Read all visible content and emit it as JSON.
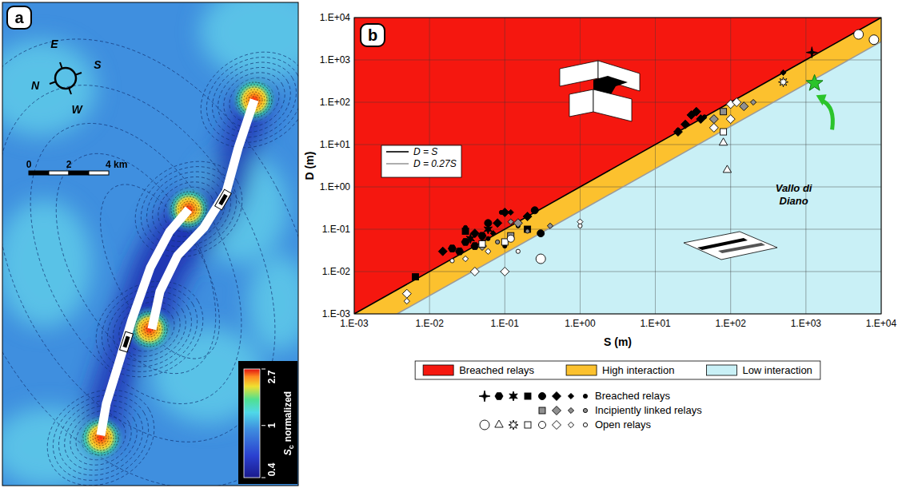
{
  "panel_a": {
    "label": "a",
    "compass": [
      "E",
      "S",
      "N",
      "W"
    ],
    "scale_bar": {
      "ticks": [
        0,
        2,
        {
          "value": 4,
          "label": "4 km"
        }
      ]
    },
    "colorbar": {
      "title": "S",
      "title_subscript": "c",
      "title_suffix": "normalized",
      "range": [
        0.4,
        2.7
      ],
      "ticks": [
        0.4,
        1,
        2.7
      ],
      "log": true
    }
  },
  "chart_data": {
    "type": "scatter",
    "panel_label": "b",
    "x_label": "S (m)",
    "y_label": "D (m)",
    "log": true,
    "grid": true,
    "legend": "bottom",
    "xlim": [
      0.001,
      10000
    ],
    "ylim": [
      0.001,
      10000
    ],
    "xticks": [
      {
        "value": 0.001,
        "label": "1.E-03"
      },
      {
        "value": 0.01,
        "label": "1.E-02"
      },
      {
        "value": 0.1,
        "label": "1.E-01"
      },
      {
        "value": 1,
        "label": "1.E+00"
      },
      {
        "value": 10,
        "label": "1.E+01"
      },
      {
        "value": 100,
        "label": "1.E+02"
      },
      {
        "value": 1000,
        "label": "1.E+03"
      },
      {
        "value": 10000,
        "label": "1.E+04"
      }
    ],
    "yticks": [
      {
        "value": 0.001,
        "label": "1.E-03"
      },
      {
        "value": 0.01,
        "label": "1.E-02"
      },
      {
        "value": 0.1,
        "label": "1.E-01"
      },
      {
        "value": 1,
        "label": "1.E+00"
      },
      {
        "value": 10,
        "label": "1.E+01"
      },
      {
        "value": 100,
        "label": "1.E+02"
      },
      {
        "value": 1000,
        "label": "1.E+03"
      },
      {
        "value": 10000,
        "label": "1.E+04"
      }
    ],
    "regions": [
      {
        "name": "Breached relays",
        "color": "#f5170f",
        "lower_ratio": 1
      },
      {
        "name": "High interaction",
        "color": "#fcc12e",
        "lower_ratio": 0.27,
        "upper_ratio": 1
      },
      {
        "name": "Low interaction",
        "color": "#c9f0f6",
        "upper_ratio": 0.27
      }
    ],
    "reference_lines": [
      {
        "name": "D = S",
        "ratio": 1,
        "color": "#000000"
      },
      {
        "name": "D = 0.27S",
        "ratio": 0.27,
        "color": "#9a9a9a"
      }
    ],
    "series": [
      {
        "name": "Breached relays",
        "marker": "cross",
        "color": "#000000",
        "x": [
          1200
        ],
        "values": [
          1500
        ]
      },
      {
        "name": "Breached relays",
        "marker": "hexagon",
        "color": "#000000",
        "x": [
          0.025,
          0.03,
          0.04,
          0.05,
          0.02
        ],
        "values": [
          0.03,
          0.05,
          0.04,
          0.07,
          0.035
        ]
      },
      {
        "name": "Breached relays",
        "marker": "asterisk",
        "color": "#000000",
        "x": [
          0.035,
          0.06
        ],
        "values": [
          0.06,
          0.1
        ]
      },
      {
        "name": "Breached relays",
        "marker": "square",
        "color": "#000000",
        "x": [
          0.0065,
          0.03,
          0.2
        ],
        "values": [
          0.0075,
          0.09,
          0.1
        ]
      },
      {
        "name": "Breached relays",
        "marker": "circle",
        "color": "#000000",
        "x": [
          0.06,
          0.25,
          0.3
        ],
        "values": [
          0.14,
          0.28,
          0.08
        ]
      },
      {
        "name": "Breached relays",
        "marker": "diamond",
        "color": "#000000",
        "x": [
          0.015,
          0.04,
          0.08,
          0.1,
          0.2,
          20,
          25,
          30,
          35,
          40
        ],
        "values": [
          0.03,
          0.08,
          0.14,
          0.25,
          0.2,
          20,
          30,
          50,
          60,
          40
        ]
      },
      {
        "name": "Breached relays",
        "marker": "small_diamond",
        "color": "#000000",
        "x": [
          0.05,
          0.07,
          0.12,
          500
        ],
        "values": [
          0.05,
          0.08,
          0.25,
          500
        ]
      },
      {
        "name": "Breached relays",
        "marker": "small_circle",
        "color": "#000000",
        "x": [
          0.03,
          0.06,
          0.09,
          0.1,
          0.15,
          20,
          45
        ],
        "values": [
          0.11,
          0.06,
          0.25,
          0.04,
          0.12,
          22,
          45
        ]
      },
      {
        "name": "Incipiently linked relays",
        "marker": "square",
        "color": "#909090",
        "x": [
          0.12,
          80
        ],
        "values": [
          0.07,
          60
        ]
      },
      {
        "name": "Incipiently linked relays",
        "marker": "diamond",
        "color": "#909090",
        "x": [
          0.05,
          0.15,
          60,
          150
        ],
        "values": [
          0.04,
          0.14,
          40,
          80
        ]
      },
      {
        "name": "Incipiently linked relays",
        "marker": "small_diamond",
        "color": "#909090",
        "x": [
          0.12,
          0.4,
          200
        ],
        "values": [
          0.15,
          0.12,
          100
        ]
      },
      {
        "name": "Incipiently linked relays",
        "marker": "small_circle",
        "color": "#909090",
        "x": [
          0.08,
          0.2
        ],
        "values": [
          0.05,
          0.09
        ]
      },
      {
        "name": "Open relays",
        "marker": "large_circle",
        "color": "#ffffff",
        "x": [
          5000,
          8000,
          0.3
        ],
        "values": [
          4000,
          3000,
          0.02
        ]
      },
      {
        "name": "Open relays",
        "marker": "triangle",
        "color": "#ffffff",
        "x": [
          80,
          90
        ],
        "values": [
          11,
          2.5
        ]
      },
      {
        "name": "Open relays",
        "marker": "star",
        "color": "#ffffff",
        "x": [
          500
        ],
        "values": [
          300
        ]
      },
      {
        "name": "Open relays",
        "marker": "square",
        "color": "#ffffff",
        "x": [
          0.05,
          0.1,
          80
        ],
        "values": [
          0.045,
          0.05,
          20
        ]
      },
      {
        "name": "Open relays",
        "marker": "circle",
        "color": "#ffffff",
        "x": [
          0.12
        ],
        "values": [
          0.06
        ]
      },
      {
        "name": "Open relays",
        "marker": "diamond",
        "color": "#ffffff",
        "x": [
          0.005,
          0.04,
          0.1,
          60,
          100,
          100,
          120
        ],
        "values": [
          0.003,
          0.01,
          0.01,
          25,
          40,
          90,
          100
        ]
      },
      {
        "name": "Open relays",
        "marker": "small_diamond",
        "color": "#ffffff",
        "x": [
          0.005,
          0.03,
          0.06,
          1
        ],
        "values": [
          0.002,
          0.02,
          0.03,
          0.15
        ]
      },
      {
        "name": "Open relays",
        "marker": "small_circle",
        "color": "#ffffff",
        "x": [
          0.02,
          0.15,
          1
        ],
        "values": [
          0.018,
          0.03,
          0.12
        ]
      }
    ],
    "annotations": [
      {
        "text": "Vallo di Diano",
        "x": 1300,
        "y": 280,
        "marker": "star5",
        "color": "#2bc42b"
      }
    ]
  }
}
